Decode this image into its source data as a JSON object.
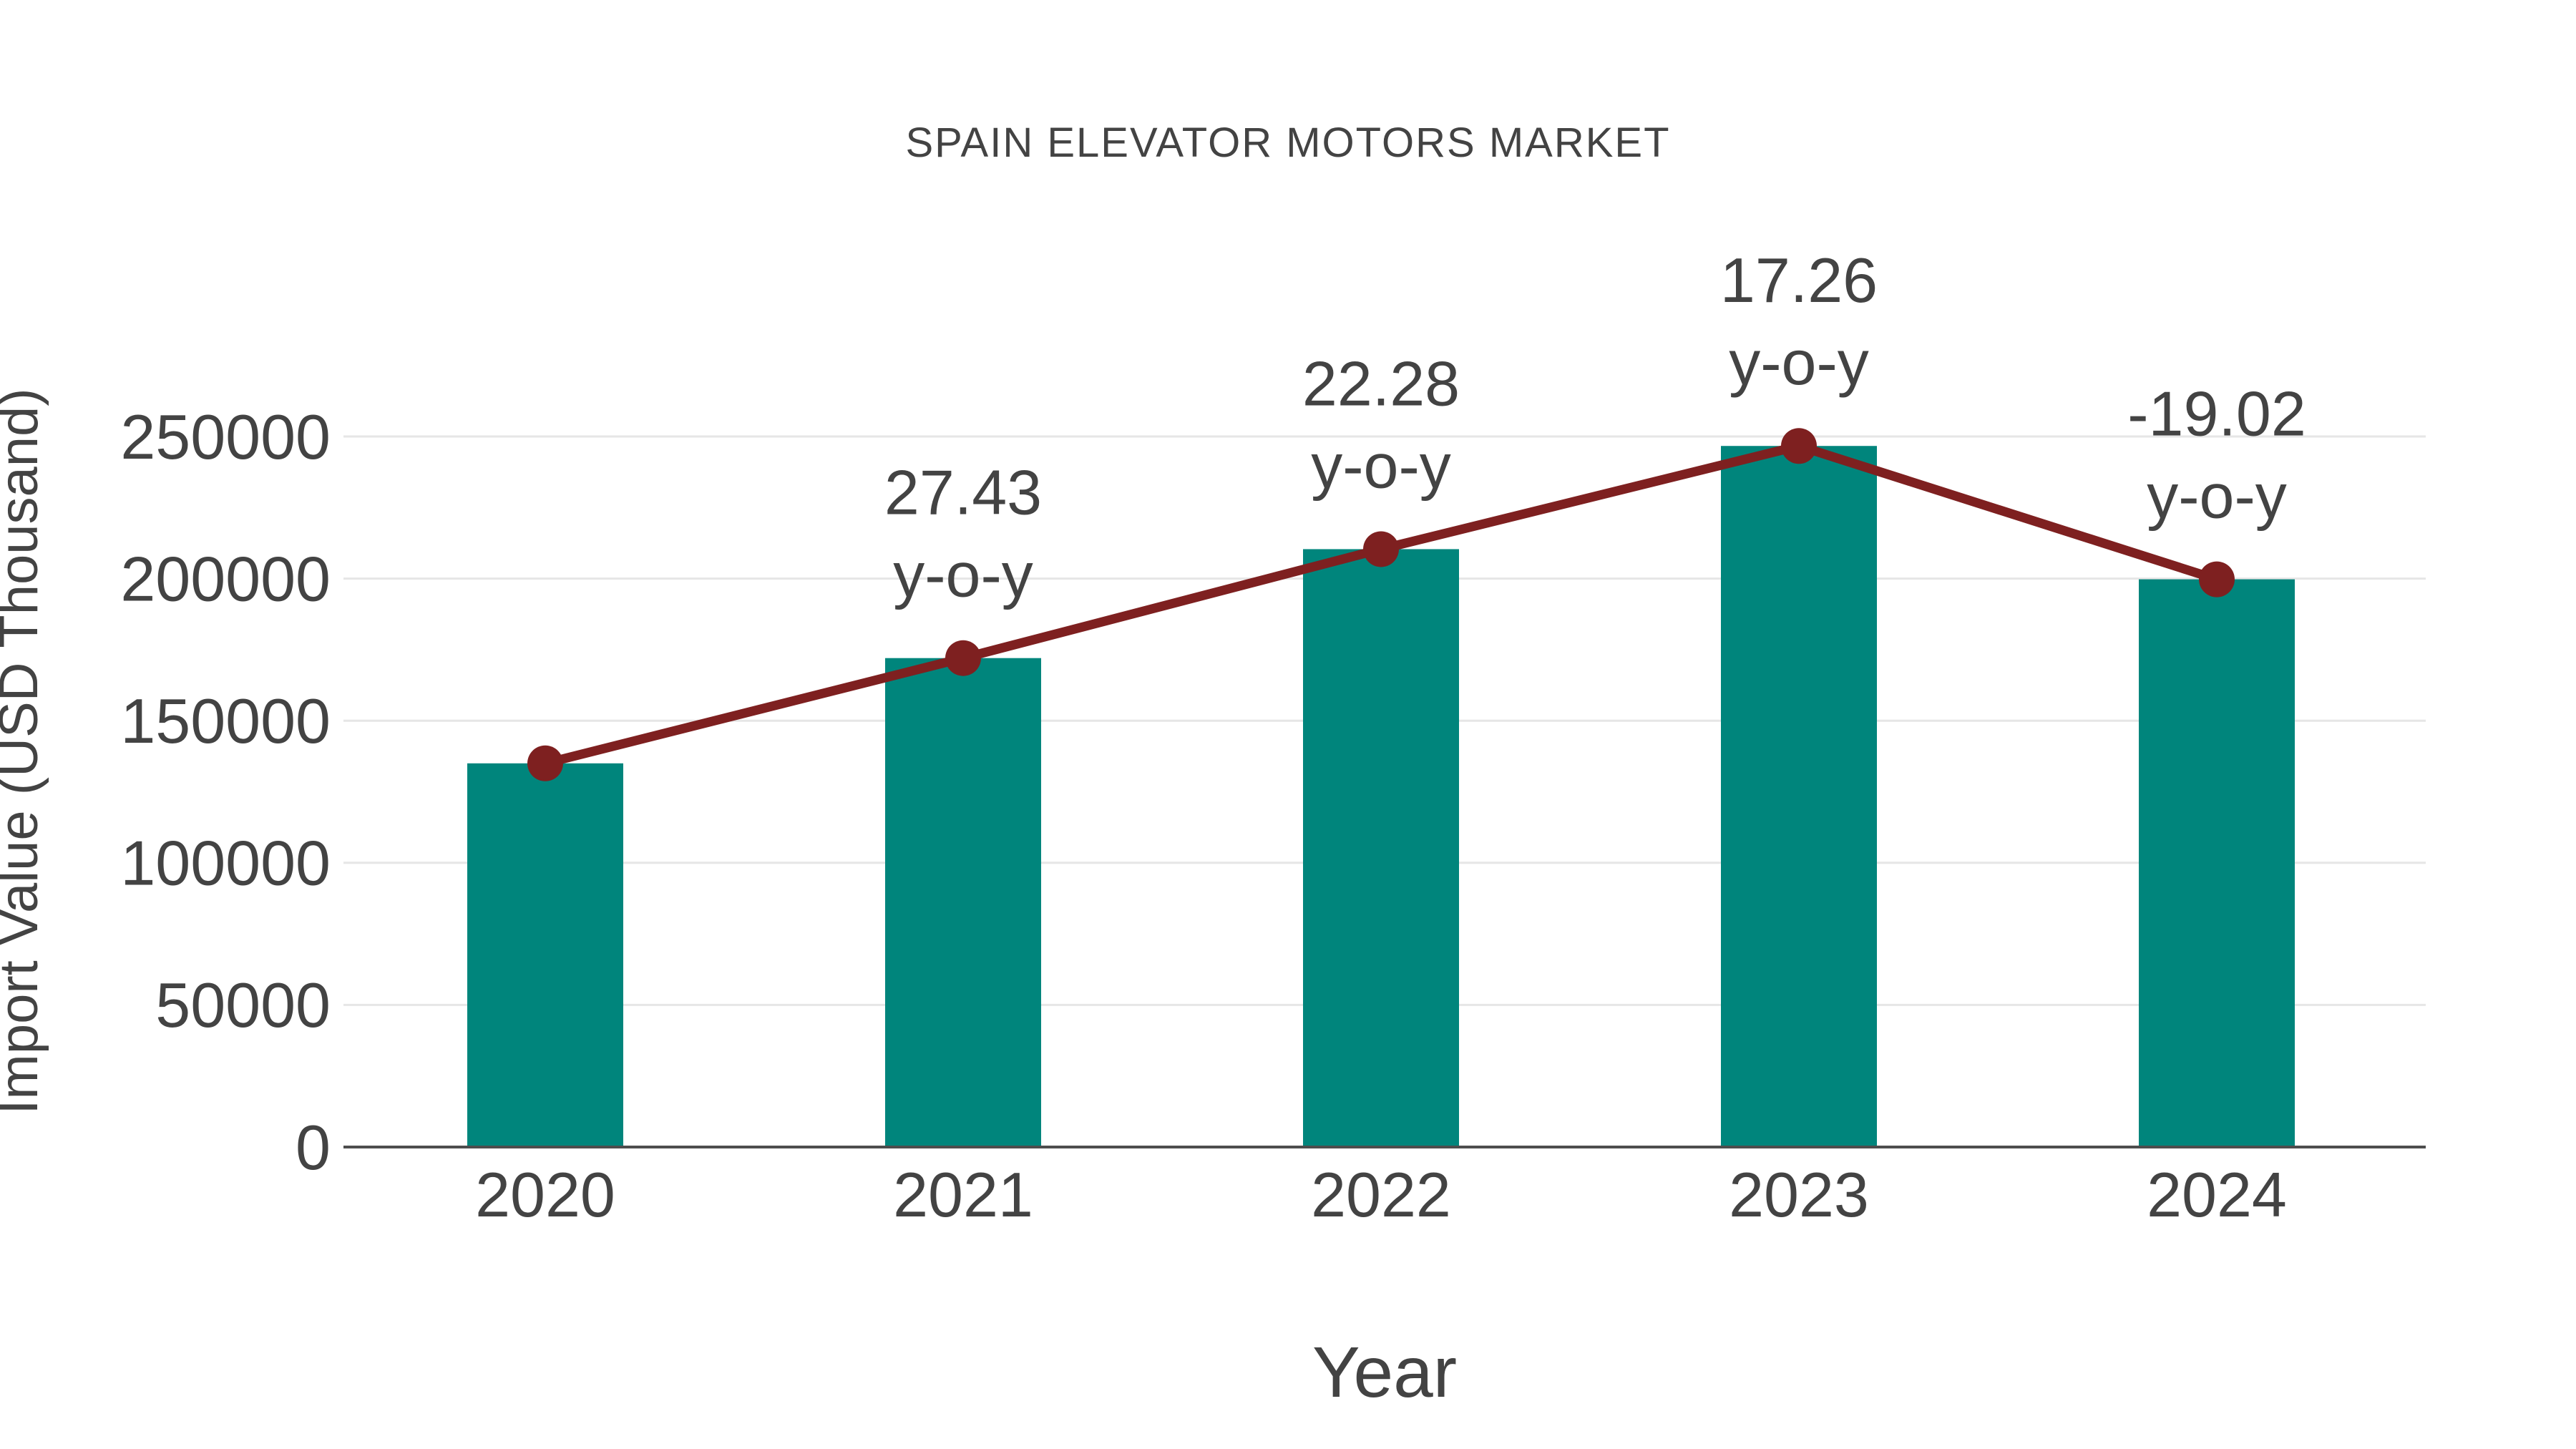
{
  "title": "SPAIN ELEVATOR MOTORS MARKET",
  "colors": {
    "bar": "#00857C",
    "line": "#7E2020",
    "marker": "#7E2020",
    "text": "#434343",
    "grid": "#e6e6e6",
    "axis": "#4d4d4d",
    "background": "#ffffff"
  },
  "chart_data": {
    "type": "bar",
    "title": "SPAIN ELEVATOR MOTORS MARKET",
    "xlabel": "Year",
    "ylabel": "Import Value (USD Thousand)",
    "categories": [
      "2020",
      "2021",
      "2022",
      "2023",
      "2024"
    ],
    "series": [
      {
        "name": "Import Value (USD Thousand)",
        "type": "bar",
        "values": [
          135000,
          172030,
          210360,
          246670,
          199750
        ]
      },
      {
        "name": "y-o-y trend line",
        "type": "line",
        "values": [
          135000,
          172030,
          210360,
          246670,
          199750
        ]
      }
    ],
    "annotations": [
      {
        "category": "2021",
        "value_label": "27.43",
        "suffix_label": "y-o-y"
      },
      {
        "category": "2022",
        "value_label": "22.28",
        "suffix_label": "y-o-y"
      },
      {
        "category": "2023",
        "value_label": "17.26",
        "suffix_label": "y-o-y"
      },
      {
        "category": "2024",
        "value_label": "-19.02",
        "suffix_label": "y-o-y"
      }
    ],
    "yticks": [
      0,
      50000,
      100000,
      150000,
      200000,
      250000
    ],
    "ytick_labels": [
      "0",
      "50000",
      "100000",
      "150000",
      "200000",
      "250000"
    ],
    "ylim": [
      0,
      262000
    ],
    "grid": true,
    "legend_position": "none"
  }
}
